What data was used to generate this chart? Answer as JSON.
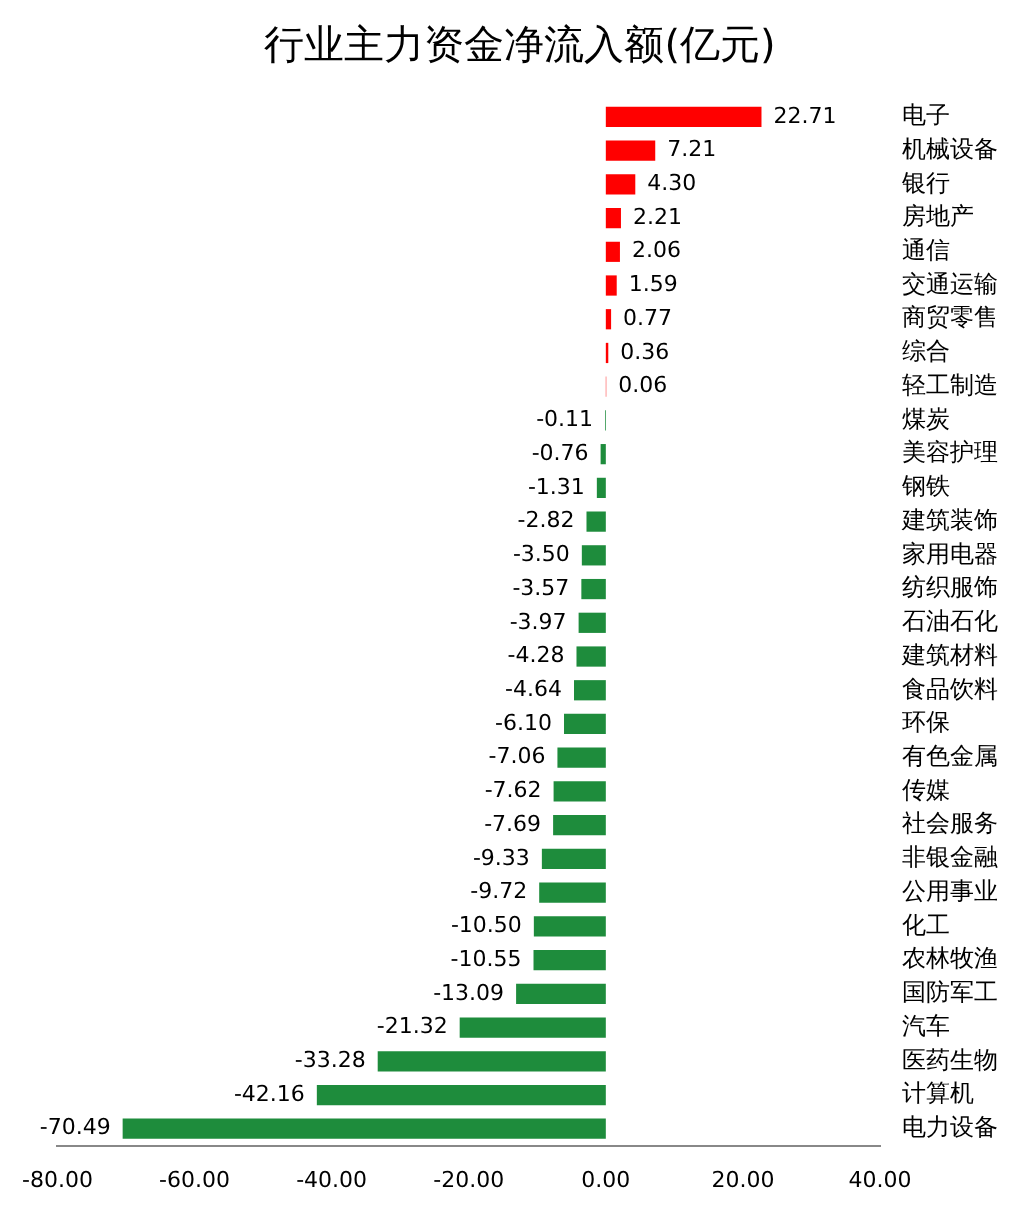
{
  "chart_data": {
    "type": "bar",
    "orientation": "horizontal",
    "title": "行业主力资金净流入额(亿元)",
    "categories": [
      "电子",
      "机械设备",
      "银行",
      "房地产",
      "通信",
      "交通运输",
      "商贸零售",
      "综合",
      "轻工制造",
      "煤炭",
      "美容护理",
      "钢铁",
      "建筑装饰",
      "家用电器",
      "纺织服饰",
      "石油石化",
      "建筑材料",
      "食品饮料",
      "环保",
      "有色金属",
      "传媒",
      "社会服务",
      "非银金融",
      "公用事业",
      "化工",
      "农林牧渔",
      "国防军工",
      "汽车",
      "医药生物",
      "计算机",
      "电力设备"
    ],
    "values": [
      22.71,
      7.21,
      4.3,
      2.21,
      2.06,
      1.59,
      0.77,
      0.36,
      0.06,
      -0.11,
      -0.76,
      -1.31,
      -2.82,
      -3.5,
      -3.57,
      -3.97,
      -4.28,
      -4.64,
      -6.1,
      -7.06,
      -7.62,
      -7.69,
      -9.33,
      -9.72,
      -10.5,
      -10.55,
      -13.09,
      -21.32,
      -33.28,
      -42.16,
      -70.49
    ],
    "value_labels": [
      "22.71",
      "7.21",
      "4.30",
      "2.21",
      "2.06",
      "1.59",
      "0.77",
      "0.36",
      "0.06",
      "-0.11",
      "-0.76",
      "-1.31",
      "-2.82",
      "-3.50",
      "-3.57",
      "-3.97",
      "-4.28",
      "-4.64",
      "-6.10",
      "-7.06",
      "-7.62",
      "-7.69",
      "-9.33",
      "-9.72",
      "-10.50",
      "-10.55",
      "-13.09",
      "-21.32",
      "-33.28",
      "-42.16",
      "-70.49"
    ],
    "colors": [
      "#ff0000",
      "#ff0000",
      "#ff0000",
      "#ff0000",
      "#ff0000",
      "#ff0000",
      "#ff0000",
      "#ff0000",
      "#ff0000",
      "#1e8c3c",
      "#1e8c3c",
      "#1e8c3c",
      "#1e8c3c",
      "#1e8c3c",
      "#1e8c3c",
      "#1e8c3c",
      "#1e8c3c",
      "#1e8c3c",
      "#1e8c3c",
      "#1e8c3c",
      "#1e8c3c",
      "#1e8c3c",
      "#1e8c3c",
      "#1e8c3c",
      "#1e8c3c",
      "#1e8c3c",
      "#1e8c3c",
      "#1e8c3c",
      "#1e8c3c",
      "#1e8c3c",
      "#1e8c3c"
    ],
    "xlim": [
      -80,
      40
    ],
    "xticks": [
      {
        "value": -80,
        "label": "-80.00"
      },
      {
        "value": -60,
        "label": "-60.00"
      },
      {
        "value": -40,
        "label": "-40.00"
      },
      {
        "value": -20,
        "label": "-20.00"
      },
      {
        "value": 0,
        "label": "0.00"
      },
      {
        "value": 20,
        "label": "20.00"
      },
      {
        "value": 40,
        "label": "40.00"
      }
    ],
    "grid": false,
    "legend": false
  }
}
